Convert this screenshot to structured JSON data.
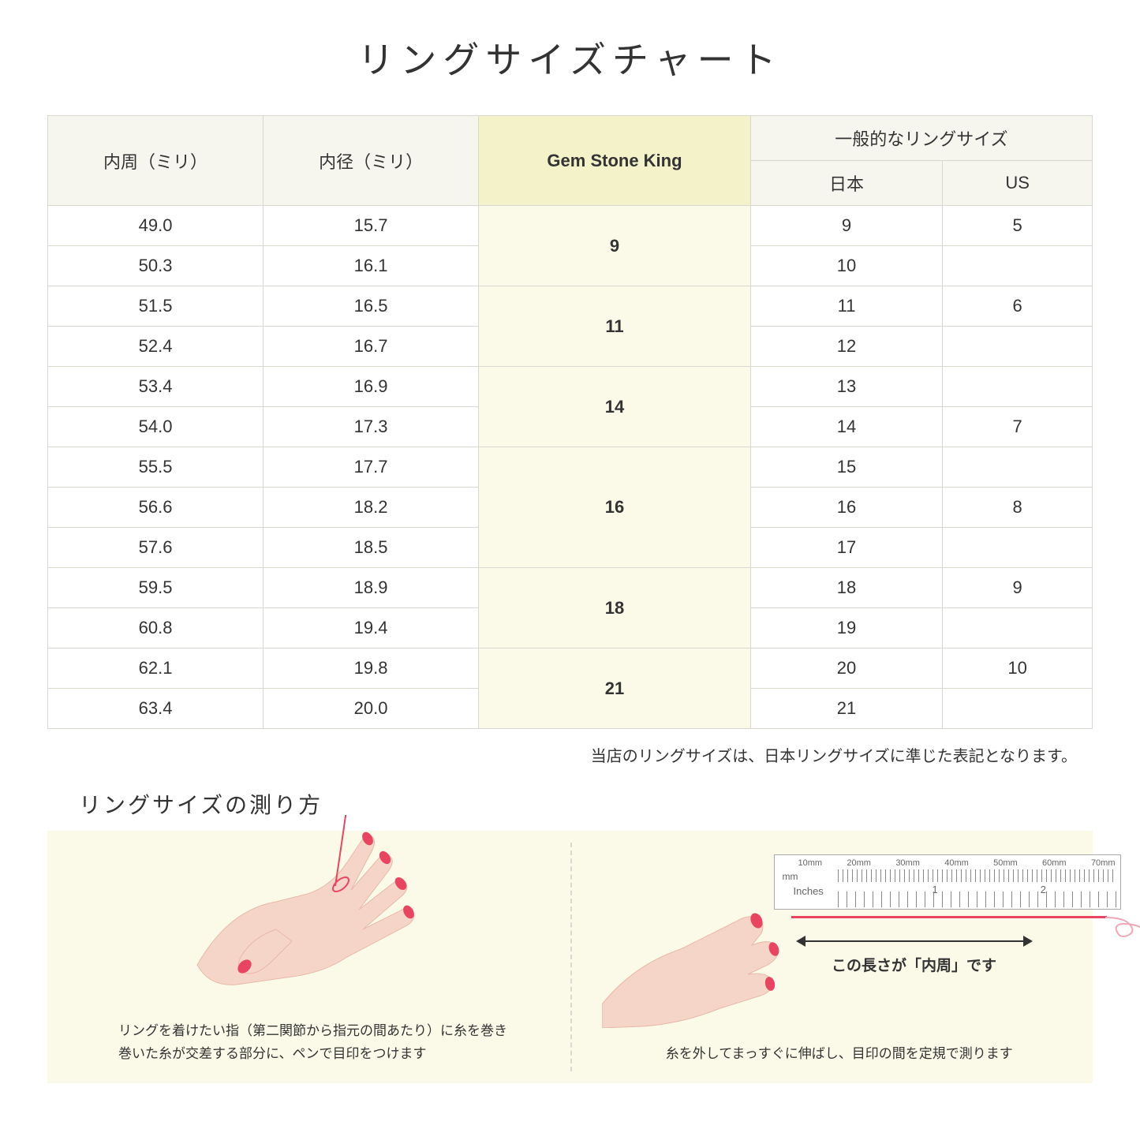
{
  "title": "リングサイズチャート",
  "table": {
    "headers": {
      "circumference": "内周（ミリ）",
      "diameter": "内径（ミリ）",
      "gsk": "Gem Stone King",
      "general": "一般的なリングサイズ",
      "jp": "日本",
      "us": "US"
    },
    "rows": [
      {
        "circ": "49.0",
        "diam": "15.7",
        "jp": "9",
        "us": "5"
      },
      {
        "circ": "50.3",
        "diam": "16.1",
        "jp": "10",
        "us": ""
      },
      {
        "circ": "51.5",
        "diam": "16.5",
        "jp": "11",
        "us": "6"
      },
      {
        "circ": "52.4",
        "diam": "16.7",
        "jp": "12",
        "us": ""
      },
      {
        "circ": "53.4",
        "diam": "16.9",
        "jp": "13",
        "us": ""
      },
      {
        "circ": "54.0",
        "diam": "17.3",
        "jp": "14",
        "us": "7"
      },
      {
        "circ": "55.5",
        "diam": "17.7",
        "jp": "15",
        "us": ""
      },
      {
        "circ": "56.6",
        "diam": "18.2",
        "jp": "16",
        "us": "8"
      },
      {
        "circ": "57.6",
        "diam": "18.5",
        "jp": "17",
        "us": ""
      },
      {
        "circ": "59.5",
        "diam": "18.9",
        "jp": "18",
        "us": "9"
      },
      {
        "circ": "60.8",
        "diam": "19.4",
        "jp": "19",
        "us": ""
      },
      {
        "circ": "62.1",
        "diam": "19.8",
        "jp": "20",
        "us": "10"
      },
      {
        "circ": "63.4",
        "diam": "20.0",
        "jp": "21",
        "us": ""
      }
    ],
    "gsk_groups": [
      {
        "start": 0,
        "span": 2,
        "val": "9"
      },
      {
        "start": 2,
        "span": 2,
        "val": "11"
      },
      {
        "start": 4,
        "span": 2,
        "val": "14"
      },
      {
        "start": 6,
        "span": 3,
        "val": "16"
      },
      {
        "start": 9,
        "span": 2,
        "val": "18"
      },
      {
        "start": 11,
        "span": 2,
        "val": "21"
      }
    ],
    "colors": {
      "header_bg": "#f7f6ee",
      "gsk_header_bg": "#f3f2c9",
      "gsk_cell_bg": "#fbfae8",
      "border": "#d8d8d0"
    }
  },
  "note": "当店のリングサイズは、日本リングサイズに準じた表記となります。",
  "howto": {
    "title": "リングサイズの測り方",
    "left_caption_1": "リングを着けたい指（第二関節から指元の間あたり）に糸を巻き",
    "left_caption_2": "巻いた糸が交差する部分に、ペンで目印をつけます",
    "right_caption": "糸を外してまっすぐに伸ばし、目印の間を定規で測ります",
    "dim_label": "この長さが「内周」です",
    "ruler": {
      "mm_marks": [
        "10mm",
        "20mm",
        "30mm",
        "40mm",
        "50mm",
        "60mm",
        "70mm"
      ],
      "mm_label": "mm",
      "inches_label": "Inches",
      "in_nums": [
        "1",
        "2"
      ]
    },
    "colors": {
      "bg": "#fbfae8",
      "skin": "#f5d5c8",
      "skin_dark": "#e8b8a8",
      "nail": "#e94560",
      "thread": "#e94560"
    }
  }
}
